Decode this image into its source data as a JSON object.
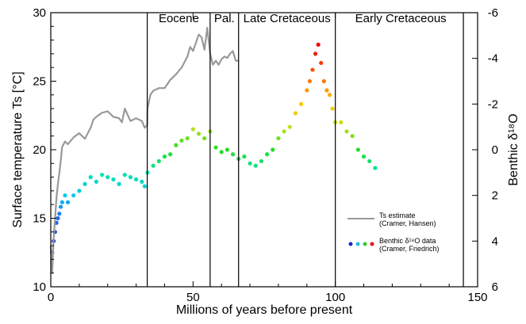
{
  "chart_data": {
    "type": "scatter",
    "xlabel": "Millions of years before present",
    "ylabel": "Surface temperature Ts [°C]",
    "y2label": "Benthic δ¹⁸O",
    "xlim": [
      0,
      150
    ],
    "ylim": [
      10,
      30
    ],
    "y2lim": [
      6,
      -6
    ],
    "xticks": [
      0,
      50,
      100,
      150
    ],
    "yticks": [
      10,
      15,
      20,
      25,
      30
    ],
    "y2ticks": [
      6,
      4,
      2,
      0,
      -2,
      -4,
      -6
    ],
    "grid": false,
    "legend_placement": "lower-right",
    "era_boundaries": [
      33.9,
      56,
      66,
      100,
      145
    ],
    "eras": [
      {
        "label": "Eocene",
        "x": 45
      },
      {
        "label": "Pal.",
        "x": 61
      },
      {
        "label": "Late Cretaceous",
        "x": 83
      },
      {
        "label": "Early Cretaceous",
        "x": 123
      }
    ],
    "series": [
      {
        "name": "Ts estimate (Cramer, Hansen)",
        "kind": "line",
        "color": "#999999",
        "x": [
          0,
          0.5,
          1,
          1.5,
          2,
          2.5,
          3,
          3.5,
          4,
          5,
          6,
          8,
          10,
          12,
          14,
          15,
          16,
          18,
          20,
          22,
          24,
          25,
          26,
          28,
          30,
          32,
          33,
          33.9,
          34,
          35,
          36,
          38,
          40,
          42,
          44,
          46,
          48,
          49,
          50,
          51,
          52,
          53,
          54,
          55,
          56,
          57,
          58,
          59,
          60,
          61,
          62,
          63,
          64,
          65,
          66
        ],
        "y": [
          13,
          11,
          13.5,
          15,
          16.5,
          17.5,
          18.3,
          19.2,
          20.2,
          20.6,
          20.4,
          20.9,
          21.2,
          20.8,
          21.6,
          22.2,
          22.4,
          22.7,
          22.8,
          22.4,
          22.3,
          22.0,
          23.0,
          22.1,
          22.3,
          22.1,
          21.6,
          21.8,
          23.0,
          24.0,
          24.3,
          24.5,
          24.5,
          25.1,
          25.5,
          26.0,
          26.8,
          27.5,
          27.2,
          27.8,
          28.4,
          28.2,
          27.3,
          28.9,
          27.0,
          26.2,
          26.5,
          26.2,
          26.6,
          26.8,
          26.7,
          27.0,
          27.2,
          26.5,
          26.5
        ]
      },
      {
        "name": "Benthic δ¹⁸O data (Cramer, Friedrich)",
        "kind": "scatter",
        "y_axis": "d18O",
        "x": [
          0.5,
          1,
          1.5,
          2,
          2.5,
          3,
          3.5,
          4,
          5,
          6,
          8,
          10,
          12,
          14,
          16,
          18,
          20,
          22,
          24,
          26,
          28,
          30,
          32,
          33,
          34,
          36,
          38,
          40,
          42,
          44,
          46,
          48,
          50,
          52,
          54,
          56,
          58,
          60,
          62,
          64,
          66,
          68,
          70,
          72,
          74,
          76,
          78,
          80,
          82,
          84,
          86,
          88,
          90,
          91,
          92,
          93,
          94,
          95,
          96,
          97,
          98,
          99,
          100,
          102,
          104,
          106,
          108,
          110,
          112,
          114
        ],
        "y": [
          4.5,
          4.0,
          3.6,
          3.2,
          3.0,
          2.8,
          2.5,
          2.3,
          2.0,
          2.3,
          2.0,
          1.8,
          1.5,
          1.2,
          1.4,
          1.1,
          1.2,
          1.3,
          1.5,
          1.1,
          1.2,
          1.3,
          1.4,
          1.6,
          1.0,
          0.7,
          0.5,
          0.3,
          0.2,
          -0.2,
          -0.4,
          -0.5,
          -0.9,
          -0.7,
          -0.5,
          -0.8,
          -0.1,
          0.1,
          0.0,
          0.2,
          0.4,
          0.3,
          0.6,
          0.7,
          0.5,
          0.2,
          0.0,
          -0.5,
          -0.8,
          -1.0,
          -1.6,
          -2.0,
          -2.6,
          -3.0,
          -3.5,
          -4.2,
          -4.6,
          -3.8,
          -3.0,
          -2.6,
          -2.4,
          -1.8,
          -1.2,
          -1.2,
          -0.8,
          -0.6,
          0.0,
          0.3,
          0.5,
          0.8
        ]
      }
    ],
    "legend": [
      {
        "line1": "Ts estimate",
        "line2": "(Cramer, Hansen)"
      },
      {
        "line1": "Benthic δ¹⁸O data",
        "line2": "(Cramer, Friedrich)"
      }
    ]
  }
}
